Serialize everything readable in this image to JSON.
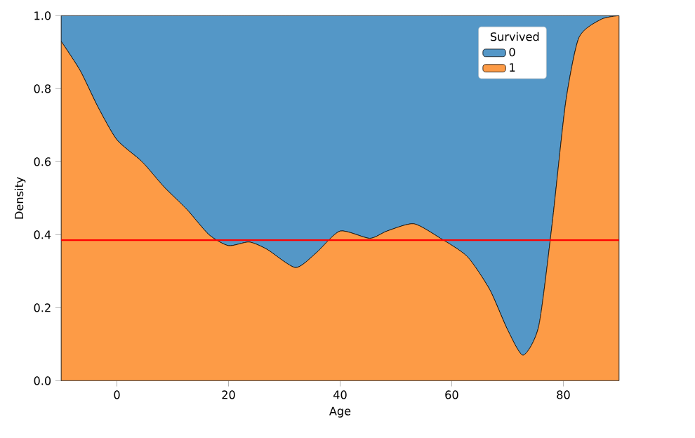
{
  "chart_data": {
    "type": "area",
    "stacked": true,
    "xlabel": "Age",
    "ylabel": "Density",
    "legend_title": "Survived",
    "legend": "top right",
    "x": [
      -10,
      -6.6,
      -3.4,
      0,
      4.5,
      8.5,
      12.5,
      16.5,
      20,
      23.7,
      26.9,
      32,
      35.7,
      40,
      45.3,
      48.4,
      53.2,
      58,
      62.8,
      66.8,
      70,
      72.8,
      75.6,
      78,
      80.4,
      82.8,
      86.8,
      90
    ],
    "series": [
      {
        "name": "1",
        "color": "#fd9b46",
        "values": [
          0.93,
          0.85,
          0.75,
          0.66,
          0.6,
          0.53,
          0.47,
          0.4,
          0.37,
          0.38,
          0.36,
          0.31,
          0.35,
          0.41,
          0.39,
          0.41,
          0.43,
          0.39,
          0.34,
          0.25,
          0.14,
          0.07,
          0.15,
          0.43,
          0.76,
          0.94,
          0.99,
          1.0
        ]
      },
      {
        "name": "0",
        "color": "#5497c7",
        "values": [
          0.07,
          0.15,
          0.25,
          0.34,
          0.4,
          0.47,
          0.53,
          0.6,
          0.63,
          0.62,
          0.64,
          0.69,
          0.65,
          0.59,
          0.61,
          0.59,
          0.57,
          0.61,
          0.66,
          0.75,
          0.86,
          0.93,
          0.85,
          0.57,
          0.24,
          0.06,
          0.01,
          0.0
        ]
      }
    ],
    "xlim": [
      -10,
      90
    ],
    "ylim": [
      0,
      1
    ],
    "xticks": [
      0,
      20,
      40,
      60,
      80
    ],
    "yticks": [
      {
        "value": 0,
        "label": "0.0"
      },
      0.2,
      0.4,
      0.6,
      0.8,
      {
        "value": 1,
        "label": "1.0"
      }
    ],
    "ref_lines": [
      {
        "axis": "y",
        "value": 0.385,
        "color": "#ff0000"
      }
    ]
  }
}
